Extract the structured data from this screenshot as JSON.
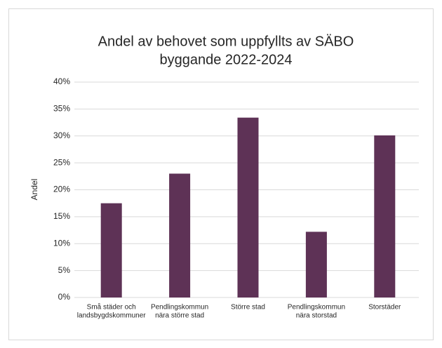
{
  "chart_data": {
    "type": "bar",
    "title": [
      "Andel av behovet som uppfyllts av SÄBO",
      "byggande 2022-2024"
    ],
    "y_label": "Andel",
    "categories": [
      [
        "Små städer och",
        "landsbygdskommuner"
      ],
      [
        "Pendlingskommun",
        "nära större stad"
      ],
      [
        "Större stad"
      ],
      [
        "Pendlingskommun",
        "nära storstad"
      ],
      [
        "Storstäder"
      ]
    ],
    "values": [
      17.5,
      23,
      33.4,
      12.2,
      30.1
    ],
    "color": "#5e3256",
    "ylim": [
      0,
      40
    ],
    "yticks": [
      {
        "value": 0,
        "label": "0%"
      },
      {
        "value": 5,
        "label": "5%"
      },
      {
        "value": 10,
        "label": "10%"
      },
      {
        "value": 15,
        "label": "15%"
      },
      {
        "value": 20,
        "label": "20%"
      },
      {
        "value": 25,
        "label": "25%"
      },
      {
        "value": 30,
        "label": "30%"
      },
      {
        "value": 35,
        "label": "35%"
      },
      {
        "value": 40,
        "label": "40%"
      }
    ],
    "grid": true
  }
}
